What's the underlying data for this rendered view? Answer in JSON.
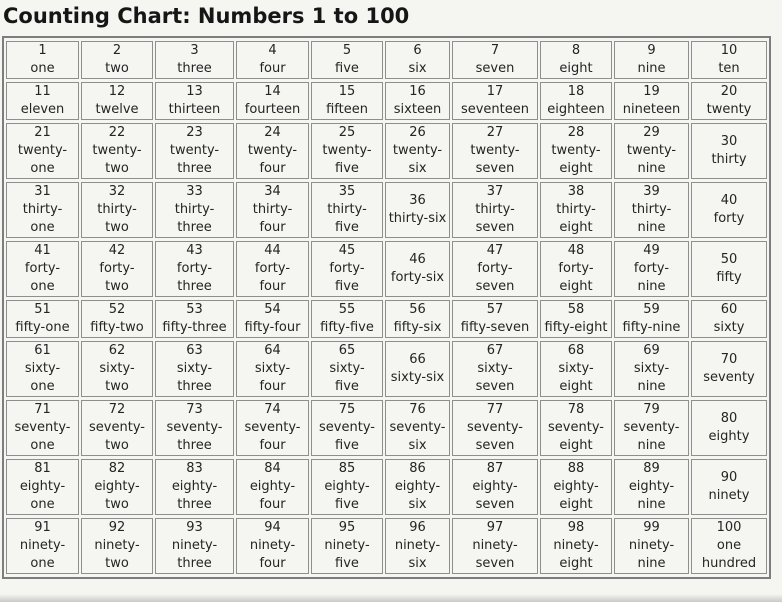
{
  "page": {
    "title": "Counting Chart: Numbers 1 to 100"
  },
  "colors": {
    "page_background": "#f5f5f1",
    "table_outer_border": "#7d7d7d",
    "cell_border": "#8e8e8e",
    "text": "#242424",
    "title_text": "#161616"
  },
  "table": {
    "rows": [
      {
        "cells": [
          {
            "n": "1",
            "w": "one",
            "br": false
          },
          {
            "n": "2",
            "w": "two",
            "br": false
          },
          {
            "n": "3",
            "w": "three",
            "br": false
          },
          {
            "n": "4",
            "w": "four",
            "br": false
          },
          {
            "n": "5",
            "w": "five",
            "br": false
          },
          {
            "n": "6",
            "w": "six",
            "br": false
          },
          {
            "n": "7",
            "w": "seven",
            "br": false
          },
          {
            "n": "8",
            "w": "eight",
            "br": false
          },
          {
            "n": "9",
            "w": "nine",
            "br": false
          },
          {
            "n": "10",
            "w": "ten",
            "br": false
          }
        ]
      },
      {
        "cells": [
          {
            "n": "11",
            "w": "eleven",
            "br": false
          },
          {
            "n": "12",
            "w": "twelve",
            "br": false
          },
          {
            "n": "13",
            "w": "thirteen",
            "br": false
          },
          {
            "n": "14",
            "w": "fourteen",
            "br": false
          },
          {
            "n": "15",
            "w": "fifteen",
            "br": false
          },
          {
            "n": "16",
            "w": "sixteen",
            "br": false
          },
          {
            "n": "17",
            "w": "seventeen",
            "br": false
          },
          {
            "n": "18",
            "w": "eighteen",
            "br": false
          },
          {
            "n": "19",
            "w": "nineteen",
            "br": false
          },
          {
            "n": "20",
            "w": "twenty",
            "br": false
          }
        ]
      },
      {
        "cells": [
          {
            "n": "21",
            "w": "twenty-one",
            "br": true
          },
          {
            "n": "22",
            "w": "twenty-two",
            "br": true
          },
          {
            "n": "23",
            "w": "twenty-three",
            "br": true
          },
          {
            "n": "24",
            "w": "twenty-four",
            "br": true
          },
          {
            "n": "25",
            "w": "twenty-five",
            "br": true
          },
          {
            "n": "26",
            "w": "twenty-six",
            "br": true
          },
          {
            "n": "27",
            "w": "twenty-seven",
            "br": true
          },
          {
            "n": "28",
            "w": "twenty-eight",
            "br": true
          },
          {
            "n": "29",
            "w": "twenty-nine",
            "br": true
          },
          {
            "n": "30",
            "w": "thirty",
            "br": false
          }
        ]
      },
      {
        "cells": [
          {
            "n": "31",
            "w": "thirty-one",
            "br": true
          },
          {
            "n": "32",
            "w": "thirty-two",
            "br": true
          },
          {
            "n": "33",
            "w": "thirty-three",
            "br": true
          },
          {
            "n": "34",
            "w": "thirty-four",
            "br": true
          },
          {
            "n": "35",
            "w": "thirty-five",
            "br": true
          },
          {
            "n": "36",
            "w": "thirty-six",
            "br": false
          },
          {
            "n": "37",
            "w": "thirty-seven",
            "br": true
          },
          {
            "n": "38",
            "w": "thirty-eight",
            "br": true
          },
          {
            "n": "39",
            "w": "thirty-nine",
            "br": true
          },
          {
            "n": "40",
            "w": "forty",
            "br": false
          }
        ]
      },
      {
        "cells": [
          {
            "n": "41",
            "w": "forty-one",
            "br": true
          },
          {
            "n": "42",
            "w": "forty-two",
            "br": true
          },
          {
            "n": "43",
            "w": "forty-three",
            "br": true
          },
          {
            "n": "44",
            "w": "forty-four",
            "br": true
          },
          {
            "n": "45",
            "w": "forty-five",
            "br": true
          },
          {
            "n": "46",
            "w": "forty-six",
            "br": false
          },
          {
            "n": "47",
            "w": "forty-seven",
            "br": true
          },
          {
            "n": "48",
            "w": "forty-eight",
            "br": true
          },
          {
            "n": "49",
            "w": "forty-nine",
            "br": true
          },
          {
            "n": "50",
            "w": "fifty",
            "br": false
          }
        ]
      },
      {
        "cells": [
          {
            "n": "51",
            "w": "fifty-one",
            "br": false
          },
          {
            "n": "52",
            "w": "fifty-two",
            "br": false
          },
          {
            "n": "53",
            "w": "fifty-three",
            "br": false
          },
          {
            "n": "54",
            "w": "fifty-four",
            "br": false
          },
          {
            "n": "55",
            "w": "fifty-five",
            "br": false
          },
          {
            "n": "56",
            "w": "fifty-six",
            "br": false
          },
          {
            "n": "57",
            "w": "fifty-seven",
            "br": false
          },
          {
            "n": "58",
            "w": "fifty-eight",
            "br": false
          },
          {
            "n": "59",
            "w": "fifty-nine",
            "br": false
          },
          {
            "n": "60",
            "w": "sixty",
            "br": false
          }
        ]
      },
      {
        "cells": [
          {
            "n": "61",
            "w": "sixty-one",
            "br": true
          },
          {
            "n": "62",
            "w": "sixty-two",
            "br": true
          },
          {
            "n": "63",
            "w": "sixty-three",
            "br": true
          },
          {
            "n": "64",
            "w": "sixty-four",
            "br": true
          },
          {
            "n": "65",
            "w": "sixty-five",
            "br": true
          },
          {
            "n": "66",
            "w": "sixty-six",
            "br": false
          },
          {
            "n": "67",
            "w": "sixty-seven",
            "br": true
          },
          {
            "n": "68",
            "w": "sixty-eight",
            "br": true
          },
          {
            "n": "69",
            "w": "sixty-nine",
            "br": true
          },
          {
            "n": "70",
            "w": "seventy",
            "br": false
          }
        ]
      },
      {
        "cells": [
          {
            "n": "71",
            "w": "seventy-one",
            "br": true
          },
          {
            "n": "72",
            "w": "seventy-two",
            "br": true
          },
          {
            "n": "73",
            "w": "seventy-three",
            "br": true
          },
          {
            "n": "74",
            "w": "seventy-four",
            "br": true
          },
          {
            "n": "75",
            "w": "seventy-five",
            "br": true
          },
          {
            "n": "76",
            "w": "seventy-six",
            "br": true
          },
          {
            "n": "77",
            "w": "seventy-seven",
            "br": true
          },
          {
            "n": "78",
            "w": "seventy-eight",
            "br": true
          },
          {
            "n": "79",
            "w": "seventy-nine",
            "br": true
          },
          {
            "n": "80",
            "w": "eighty",
            "br": false
          }
        ]
      },
      {
        "cells": [
          {
            "n": "81",
            "w": "eighty-one",
            "br": true
          },
          {
            "n": "82",
            "w": "eighty-two",
            "br": true
          },
          {
            "n": "83",
            "w": "eighty-three",
            "br": true
          },
          {
            "n": "84",
            "w": "eighty-four",
            "br": true
          },
          {
            "n": "85",
            "w": "eighty-five",
            "br": true
          },
          {
            "n": "86",
            "w": "eighty-six",
            "br": true
          },
          {
            "n": "87",
            "w": "eighty-seven",
            "br": true
          },
          {
            "n": "88",
            "w": "eighty-eight",
            "br": true
          },
          {
            "n": "89",
            "w": "eighty-nine",
            "br": true
          },
          {
            "n": "90",
            "w": "ninety",
            "br": false
          }
        ]
      },
      {
        "cells": [
          {
            "n": "91",
            "w": "ninety-one",
            "br": true
          },
          {
            "n": "92",
            "w": "ninety-two",
            "br": true
          },
          {
            "n": "93",
            "w": "ninety-three",
            "br": true
          },
          {
            "n": "94",
            "w": "ninety-four",
            "br": true
          },
          {
            "n": "95",
            "w": "ninety-five",
            "br": true
          },
          {
            "n": "96",
            "w": "ninety-six",
            "br": true
          },
          {
            "n": "97",
            "w": "ninety-seven",
            "br": true
          },
          {
            "n": "98",
            "w": "ninety-eight",
            "br": true
          },
          {
            "n": "99",
            "w": "ninety-nine",
            "br": true
          },
          {
            "n": "100",
            "w": "one hundred",
            "br": true
          }
        ]
      }
    ]
  }
}
